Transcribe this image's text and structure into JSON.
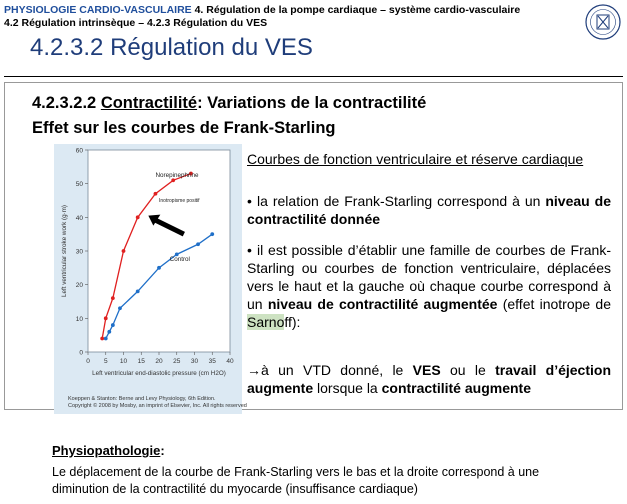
{
  "header": {
    "course": "PHYSIOLOGIE CARDIO-VASCULAIRE",
    "section": " 4. Régulation de la pompe cardiaque – système cardio-vasculaire",
    "subsection": "4.2 Régulation intrinsèque – 4.2.3 Régulation du VES"
  },
  "title": "4.2.3.2 Régulation du VES",
  "slide": {
    "heading_number": "4.2.3.2.2 ",
    "heading_term": "Contractilité",
    "heading_rest": ":  Variations de la contractilité",
    "heading_line2": "Effet sur les courbes de Frank-Starling",
    "para1": "Courbes de fonction ventriculaire et réserve cardiaque",
    "bullet1_a": "la relation de Frank-Starling correspond à un ",
    "bullet1_b": "niveau de contractilité donnée",
    "bullet2_a": "il est possible d’établir une famille de courbes de Frank-Starling ou courbes de fonction ventriculaire, déplacées vers le haut et la gauche où chaque courbe correspond à un ",
    "bullet2_b": "niveau de contractilité augmentée",
    "bullet2_c": " (effet inotrope de ",
    "bullet2_hl": "Sarno",
    "bullet2_d": "ff):",
    "bullet3_arrow": "→",
    "bullet3_a": "à un VTD donné, le ",
    "bullet3_b": "VES",
    "bullet3_c": " ou le ",
    "bullet3_d": "travail d’éjection augmente",
    "bullet3_e": " lorsque la ",
    "bullet3_f": "contractilité augmente"
  },
  "figure_credit_1": "Koeppen & Stanton: Berne and Levy Physiology, 6th Edition.",
  "figure_credit_2": "Copyright © 2008 by Mosby, an imprint of Elsevier, Inc. All rights reserved",
  "chart_data": {
    "type": "line",
    "xlabel": "Left ventricular end-diastolic pressure (cm H2O)",
    "ylabel": "Left ventricular stroke work (g·m)",
    "xlim": [
      0,
      40
    ],
    "ylim": [
      0,
      60
    ],
    "xticks": [
      "0",
      "5",
      "10",
      "15",
      "20",
      "25",
      "30",
      "35",
      "40"
    ],
    "yticks": [
      "0",
      "10",
      "20",
      "30",
      "40",
      "50",
      "60"
    ],
    "annotations": [
      "Inotropisme positif"
    ],
    "series": [
      {
        "name": "Norepinephrine",
        "color": "#e02020",
        "x": [
          4,
          5,
          7,
          10,
          14,
          19,
          24,
          29
        ],
        "y": [
          4,
          10,
          16,
          30,
          40,
          47,
          51,
          53
        ]
      },
      {
        "name": "Control",
        "color": "#1f6fc8",
        "x": [
          5,
          6,
          7,
          9,
          14,
          20,
          25,
          31,
          35
        ],
        "y": [
          4,
          6,
          8,
          13,
          18,
          25,
          29,
          32,
          35
        ]
      }
    ]
  },
  "physio": {
    "heading": "Physiopathologie",
    "colon": ":",
    "text": "Le déplacement de la courbe de Frank-Starling vers le bas et la droite correspond à une diminution de la contractilité du myocarde (insuffisance cardiaque)"
  }
}
